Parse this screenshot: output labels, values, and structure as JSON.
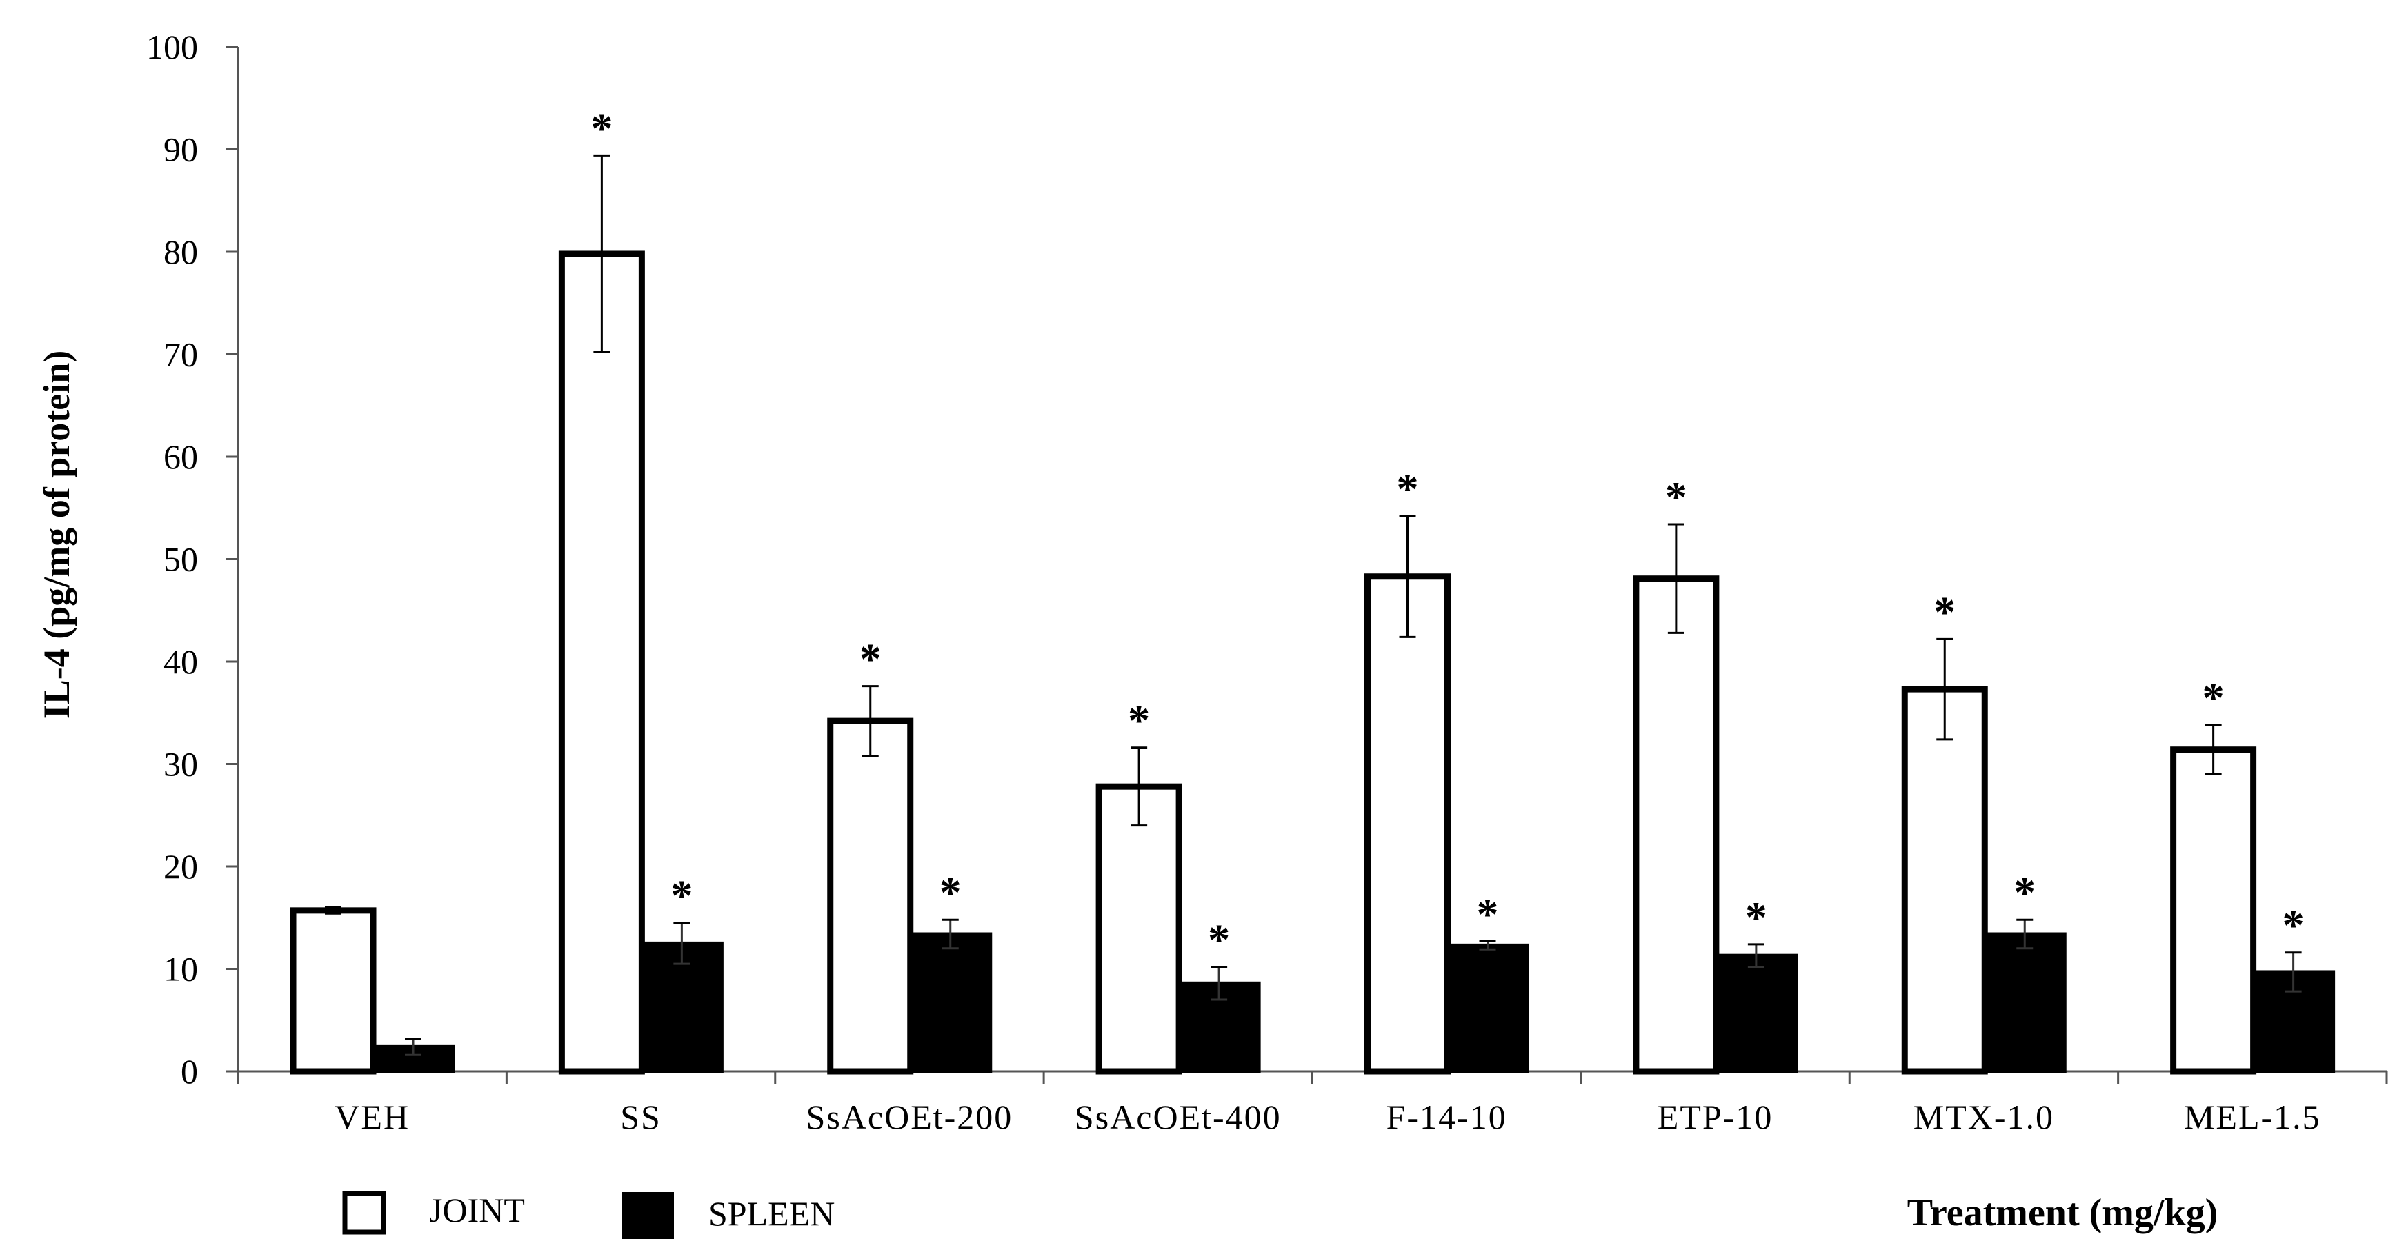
{
  "chart_data": {
    "type": "bar",
    "title": "",
    "xlabel": "Treatment (mg/kg)",
    "ylabel": "IL-4 (pg/mg of protein)",
    "ylim": [
      0,
      100
    ],
    "yticks": [
      "0",
      "10",
      "20",
      "30",
      "40",
      "50",
      "60",
      "70",
      "80",
      "90",
      "100"
    ],
    "categories": [
      "VEH",
      "SS",
      "SsAcOEt-200",
      "SsAcOEt-400",
      "F-14-10",
      "ETP-10",
      "MTX-1.0",
      "MEL-1.5"
    ],
    "series": [
      {
        "name": "JOINT",
        "color": "#ffffff",
        "values": [
          15.7,
          79.8,
          34.2,
          27.8,
          48.3,
          48.1,
          37.3,
          31.4
        ],
        "errors": [
          0.3,
          9.6,
          3.4,
          3.8,
          5.9,
          5.3,
          4.9,
          2.4
        ],
        "significance": [
          "",
          "*",
          "*",
          "*",
          "*",
          "*",
          "*",
          "*"
        ]
      },
      {
        "name": "SPLEEN",
        "color": "#000000",
        "values": [
          2.4,
          12.5,
          13.4,
          8.6,
          12.3,
          11.3,
          13.4,
          9.7
        ],
        "errors": [
          0.8,
          2.0,
          1.4,
          1.6,
          0.4,
          1.1,
          1.4,
          1.9
        ],
        "significance": [
          "",
          "*",
          "*",
          "*",
          "*",
          "*",
          "*",
          "*"
        ]
      }
    ],
    "legend_position": "bottom-left"
  }
}
